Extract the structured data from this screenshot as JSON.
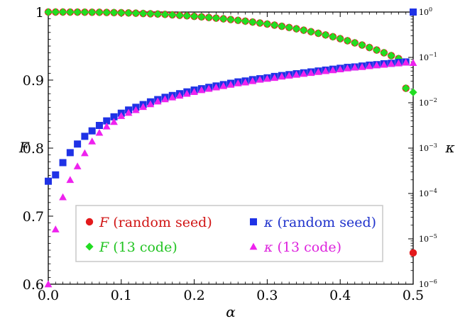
{
  "chart_data": {
    "type": "scatter",
    "xlabel": "α",
    "ylabel_left": "F",
    "ylabel_right": "κ",
    "xlim": [
      0,
      0.5
    ],
    "ylim_left": [
      0.6,
      1.0
    ],
    "ylim_right_log10": [
      -6,
      0
    ],
    "x_ticks": [
      "0.0",
      "0.1",
      "0.2",
      "0.3",
      "0.4",
      "0.5"
    ],
    "y_left_ticks": [
      "0.6",
      "0.7",
      "0.8",
      "0.9",
      "1"
    ],
    "y_right_ticks": [
      {
        "base": "10",
        "exp": "0"
      },
      {
        "base": "10",
        "exp": "−1"
      },
      {
        "base": "10",
        "exp": "−2"
      },
      {
        "base": "10",
        "exp": "−3"
      },
      {
        "base": "10",
        "exp": "−4"
      },
      {
        "base": "10",
        "exp": "−5"
      },
      {
        "base": "10",
        "exp": "−6"
      }
    ],
    "colors": {
      "F_random": "#e31a1c",
      "F_13": "#22dd22",
      "kappa_random": "#1f32e6",
      "kappa_13": "#ee22ee",
      "legend_text_F_random": "#d11515",
      "legend_text_F_13": "#22c422",
      "legend_text_kappa_random": "#1f32cc",
      "legend_text_kappa_13": "#dd22dd"
    },
    "legend": {
      "position": "lower-center",
      "entries": [
        {
          "symbol": "F",
          "label": " (random seed)",
          "marker": "circle",
          "series": "F_random"
        },
        {
          "symbol": "κ",
          "label": " (random seed)",
          "marker": "square",
          "series": "kappa_random"
        },
        {
          "symbol": "F",
          "label": " (13 code)",
          "marker": "diamond",
          "series": "F_13"
        },
        {
          "symbol": "κ",
          "label": " (13 code)",
          "marker": "triangle",
          "series": "kappa_13"
        }
      ]
    },
    "series": [
      {
        "name": "F (random seed)",
        "axis": "left",
        "marker": "circle",
        "x": [
          0.0,
          0.01,
          0.02,
          0.03,
          0.04,
          0.05,
          0.06,
          0.07,
          0.08,
          0.09,
          0.1,
          0.11,
          0.12,
          0.13,
          0.14,
          0.15,
          0.16,
          0.17,
          0.18,
          0.19,
          0.2,
          0.21,
          0.22,
          0.23,
          0.24,
          0.25,
          0.26,
          0.27,
          0.28,
          0.29,
          0.3,
          0.31,
          0.32,
          0.33,
          0.34,
          0.35,
          0.36,
          0.37,
          0.38,
          0.39,
          0.4,
          0.41,
          0.42,
          0.43,
          0.44,
          0.45,
          0.46,
          0.47,
          0.48,
          0.49,
          0.5
        ],
        "y": [
          1.0,
          1.0,
          1.0,
          0.9999,
          0.9999,
          0.9998,
          0.9997,
          0.9996,
          0.9994,
          0.9992,
          0.999,
          0.9987,
          0.9983,
          0.9979,
          0.9975,
          0.997,
          0.9965,
          0.9959,
          0.9952,
          0.9945,
          0.9937,
          0.9929,
          0.992,
          0.9911,
          0.9901,
          0.989,
          0.9878,
          0.9866,
          0.9853,
          0.9839,
          0.9824,
          0.9808,
          0.9791,
          0.9773,
          0.9754,
          0.9733,
          0.9711,
          0.9688,
          0.9663,
          0.9637,
          0.9609,
          0.9579,
          0.9548,
          0.9515,
          0.9479,
          0.9442,
          0.9402,
          0.936,
          0.9316,
          0.888,
          0.646
        ]
      },
      {
        "name": "F (13 code)",
        "axis": "left",
        "marker": "diamond",
        "x": [
          0.0,
          0.01,
          0.02,
          0.03,
          0.04,
          0.05,
          0.06,
          0.07,
          0.08,
          0.09,
          0.1,
          0.11,
          0.12,
          0.13,
          0.14,
          0.15,
          0.16,
          0.17,
          0.18,
          0.19,
          0.2,
          0.21,
          0.22,
          0.23,
          0.24,
          0.25,
          0.26,
          0.27,
          0.28,
          0.29,
          0.3,
          0.31,
          0.32,
          0.33,
          0.34,
          0.35,
          0.36,
          0.37,
          0.38,
          0.39,
          0.4,
          0.41,
          0.42,
          0.43,
          0.44,
          0.45,
          0.46,
          0.47,
          0.48,
          0.49,
          0.5
        ],
        "y": [
          1.0,
          1.0,
          1.0,
          0.9999,
          0.9999,
          0.9998,
          0.9997,
          0.9996,
          0.9994,
          0.9992,
          0.999,
          0.9987,
          0.9983,
          0.9979,
          0.9975,
          0.997,
          0.9965,
          0.9959,
          0.9952,
          0.9945,
          0.9937,
          0.9929,
          0.992,
          0.9911,
          0.9901,
          0.989,
          0.9878,
          0.9866,
          0.9853,
          0.9839,
          0.9824,
          0.9808,
          0.9791,
          0.9773,
          0.9754,
          0.9733,
          0.9711,
          0.9688,
          0.9663,
          0.9637,
          0.9609,
          0.9579,
          0.9548,
          0.9515,
          0.9479,
          0.9442,
          0.9402,
          0.936,
          0.9316,
          0.888,
          0.882
        ]
      },
      {
        "name": "κ (random seed)",
        "axis": "right",
        "marker": "square",
        "x": [
          0.0,
          0.01,
          0.02,
          0.03,
          0.04,
          0.05,
          0.06,
          0.07,
          0.08,
          0.09,
          0.1,
          0.11,
          0.12,
          0.13,
          0.14,
          0.15,
          0.16,
          0.17,
          0.18,
          0.19,
          0.2,
          0.21,
          0.22,
          0.23,
          0.24,
          0.25,
          0.26,
          0.27,
          0.28,
          0.29,
          0.3,
          0.31,
          0.32,
          0.33,
          0.34,
          0.35,
          0.36,
          0.37,
          0.38,
          0.39,
          0.4,
          0.41,
          0.42,
          0.43,
          0.44,
          0.45,
          0.46,
          0.47,
          0.48,
          0.49,
          0.5
        ],
        "log10y": [
          -3.73,
          -3.59,
          -3.32,
          -3.1,
          -2.91,
          -2.74,
          -2.62,
          -2.5,
          -2.4,
          -2.31,
          -2.23,
          -2.16,
          -2.1,
          -2.04,
          -1.98,
          -1.93,
          -1.88,
          -1.84,
          -1.8,
          -1.76,
          -1.72,
          -1.69,
          -1.66,
          -1.63,
          -1.6,
          -1.57,
          -1.54,
          -1.52,
          -1.49,
          -1.47,
          -1.45,
          -1.42,
          -1.4,
          -1.38,
          -1.36,
          -1.34,
          -1.32,
          -1.3,
          -1.28,
          -1.26,
          -1.24,
          -1.22,
          -1.21,
          -1.19,
          -1.17,
          -1.16,
          -1.14,
          -1.13,
          -1.11,
          -1.1,
          0.0
        ]
      },
      {
        "name": "κ (13 code)",
        "axis": "right",
        "marker": "triangle",
        "x": [
          0.0,
          0.01,
          0.02,
          0.03,
          0.04,
          0.05,
          0.06,
          0.07,
          0.08,
          0.09,
          0.1,
          0.11,
          0.12,
          0.13,
          0.14,
          0.15,
          0.16,
          0.17,
          0.18,
          0.19,
          0.2,
          0.21,
          0.22,
          0.23,
          0.24,
          0.25,
          0.26,
          0.27,
          0.28,
          0.29,
          0.3,
          0.31,
          0.32,
          0.33,
          0.34,
          0.35,
          0.36,
          0.37,
          0.38,
          0.39,
          0.4,
          0.41,
          0.42,
          0.43,
          0.44,
          0.45,
          0.46,
          0.47,
          0.48,
          0.49,
          0.5
        ],
        "log10y": [
          -6.0,
          -4.79,
          -4.08,
          -3.7,
          -3.4,
          -3.11,
          -2.85,
          -2.66,
          -2.52,
          -2.42,
          -2.29,
          -2.22,
          -2.16,
          -2.09,
          -2.03,
          -1.97,
          -1.92,
          -1.88,
          -1.84,
          -1.8,
          -1.76,
          -1.72,
          -1.69,
          -1.66,
          -1.63,
          -1.6,
          -1.57,
          -1.55,
          -1.52,
          -1.49,
          -1.47,
          -1.45,
          -1.42,
          -1.4,
          -1.38,
          -1.36,
          -1.34,
          -1.32,
          -1.3,
          -1.28,
          -1.26,
          -1.24,
          -1.22,
          -1.21,
          -1.19,
          -1.17,
          -1.16,
          -1.14,
          -1.13,
          -1.11,
          -1.12
        ]
      }
    ]
  }
}
